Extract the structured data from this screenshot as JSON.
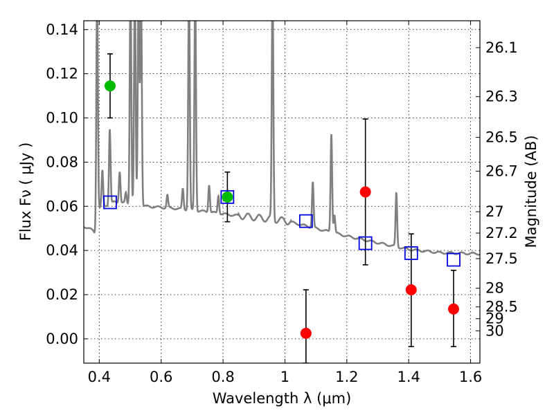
{
  "chart_data": {
    "type": "scatter",
    "xlabel": "Wavelength  λ (μm)",
    "ylabel": "Flux  Fν ( μJy )",
    "ylabel_right": "Magnitude (AB)",
    "xlim": [
      0.35,
      1.63
    ],
    "ylim": [
      -0.011,
      0.144
    ],
    "grid": true,
    "x_ticks": [
      {
        "value": 0.4,
        "label": "0.4"
      },
      {
        "value": 0.6,
        "label": "0.6"
      },
      {
        "value": 0.8,
        "label": "0.8"
      },
      {
        "value": 1.0,
        "label": "1"
      },
      {
        "value": 1.2,
        "label": "1.2"
      },
      {
        "value": 1.4,
        "label": "1.4"
      },
      {
        "value": 1.6,
        "label": "1.6"
      }
    ],
    "y_ticks": [
      {
        "value": 0.0,
        "label": "0.00"
      },
      {
        "value": 0.02,
        "label": "0.02"
      },
      {
        "value": 0.04,
        "label": "0.04"
      },
      {
        "value": 0.06,
        "label": "0.06"
      },
      {
        "value": 0.08,
        "label": "0.08"
      },
      {
        "value": 0.1,
        "label": "0.10"
      },
      {
        "value": 0.12,
        "label": "0.12"
      },
      {
        "value": 0.14,
        "label": "0.14"
      }
    ],
    "right_ticks": [
      {
        "mag": 26.1,
        "label": "26.1"
      },
      {
        "mag": 26.3,
        "label": "26.3"
      },
      {
        "mag": 26.5,
        "label": "26.5"
      },
      {
        "mag": 26.7,
        "label": "26.7"
      },
      {
        "mag": 27.0,
        "label": "27"
      },
      {
        "mag": 27.2,
        "label": "27.2"
      },
      {
        "mag": 27.5,
        "label": "27.5"
      },
      {
        "mag": 28.0,
        "label": "28"
      },
      {
        "mag": 28.5,
        "label": "28.5"
      },
      {
        "mag": 29.0,
        "label": "29"
      },
      {
        "mag": 30.0,
        "label": "30"
      }
    ],
    "series": [
      {
        "kind": "points",
        "marker": "circle",
        "color": "#00bb00",
        "points": [
          {
            "x": 0.435,
            "y": 0.1145,
            "ylo": 0.1,
            "yhi": 0.129
          },
          {
            "x": 0.814,
            "y": 0.0642,
            "ylo": 0.053,
            "yhi": 0.0755
          }
        ]
      },
      {
        "kind": "points",
        "marker": "circle",
        "color": "#ff0000",
        "points": [
          {
            "x": 1.068,
            "y": 0.0025,
            "ylo": -0.011,
            "yhi": 0.0222
          },
          {
            "x": 1.26,
            "y": 0.0665,
            "ylo": 0.0335,
            "yhi": 0.0995
          },
          {
            "x": 1.408,
            "y": 0.0222,
            "ylo": -0.0035,
            "yhi": 0.0475
          },
          {
            "x": 1.545,
            "y": 0.0135,
            "ylo": -0.0035,
            "yhi": 0.031
          }
        ]
      },
      {
        "kind": "points",
        "marker": "square",
        "color": "#0000dd",
        "points": [
          {
            "x": 0.435,
            "y": 0.0618
          },
          {
            "x": 0.814,
            "y": 0.0642
          },
          {
            "x": 1.068,
            "y": 0.0533
          },
          {
            "x": 1.26,
            "y": 0.0433
          },
          {
            "x": 1.408,
            "y": 0.0388
          },
          {
            "x": 1.545,
            "y": 0.0358
          }
        ]
      },
      {
        "kind": "spectrum",
        "color": "#808080",
        "continuum": [
          [
            0.35,
            0.051
          ],
          [
            0.38,
            0.049
          ],
          [
            0.39,
            0.047
          ],
          [
            0.4,
            0.059
          ],
          [
            0.45,
            0.062
          ],
          [
            0.55,
            0.06
          ],
          [
            0.65,
            0.059
          ],
          [
            0.75,
            0.0575
          ],
          [
            0.8,
            0.0565
          ],
          [
            0.9,
            0.055
          ],
          [
            1.0,
            0.0535
          ],
          [
            1.1,
            0.05
          ],
          [
            1.2,
            0.0465
          ],
          [
            1.3,
            0.0435
          ],
          [
            1.35,
            0.042
          ],
          [
            1.4,
            0.0405
          ],
          [
            1.5,
            0.039
          ],
          [
            1.63,
            0.0385
          ]
        ],
        "lines": [
          {
            "x": 0.393,
            "peak": 0.16
          },
          {
            "x": 0.41,
            "peak": 0.076
          },
          {
            "x": 0.434,
            "peak": 0.095
          },
          {
            "x": 0.466,
            "peak": 0.076
          },
          {
            "x": 0.486,
            "peak": 0.066
          },
          {
            "x": 0.501,
            "peak": 0.16
          },
          {
            "x": 0.515,
            "peak": 0.16
          },
          {
            "x": 0.527,
            "peak": 0.16
          },
          {
            "x": 0.535,
            "peak": 0.16
          },
          {
            "x": 0.62,
            "peak": 0.065
          },
          {
            "x": 0.67,
            "peak": 0.068
          },
          {
            "x": 0.69,
            "peak": 0.16
          },
          {
            "x": 0.71,
            "peak": 0.16
          },
          {
            "x": 0.755,
            "peak": 0.07
          },
          {
            "x": 0.785,
            "peak": 0.065
          },
          {
            "x": 0.96,
            "peak": 0.16
          },
          {
            "x": 1.09,
            "peak": 0.071
          },
          {
            "x": 1.15,
            "peak": 0.093
          },
          {
            "x": 1.16,
            "peak": 0.056
          },
          {
            "x": 1.36,
            "peak": 0.066
          }
        ]
      }
    ]
  }
}
